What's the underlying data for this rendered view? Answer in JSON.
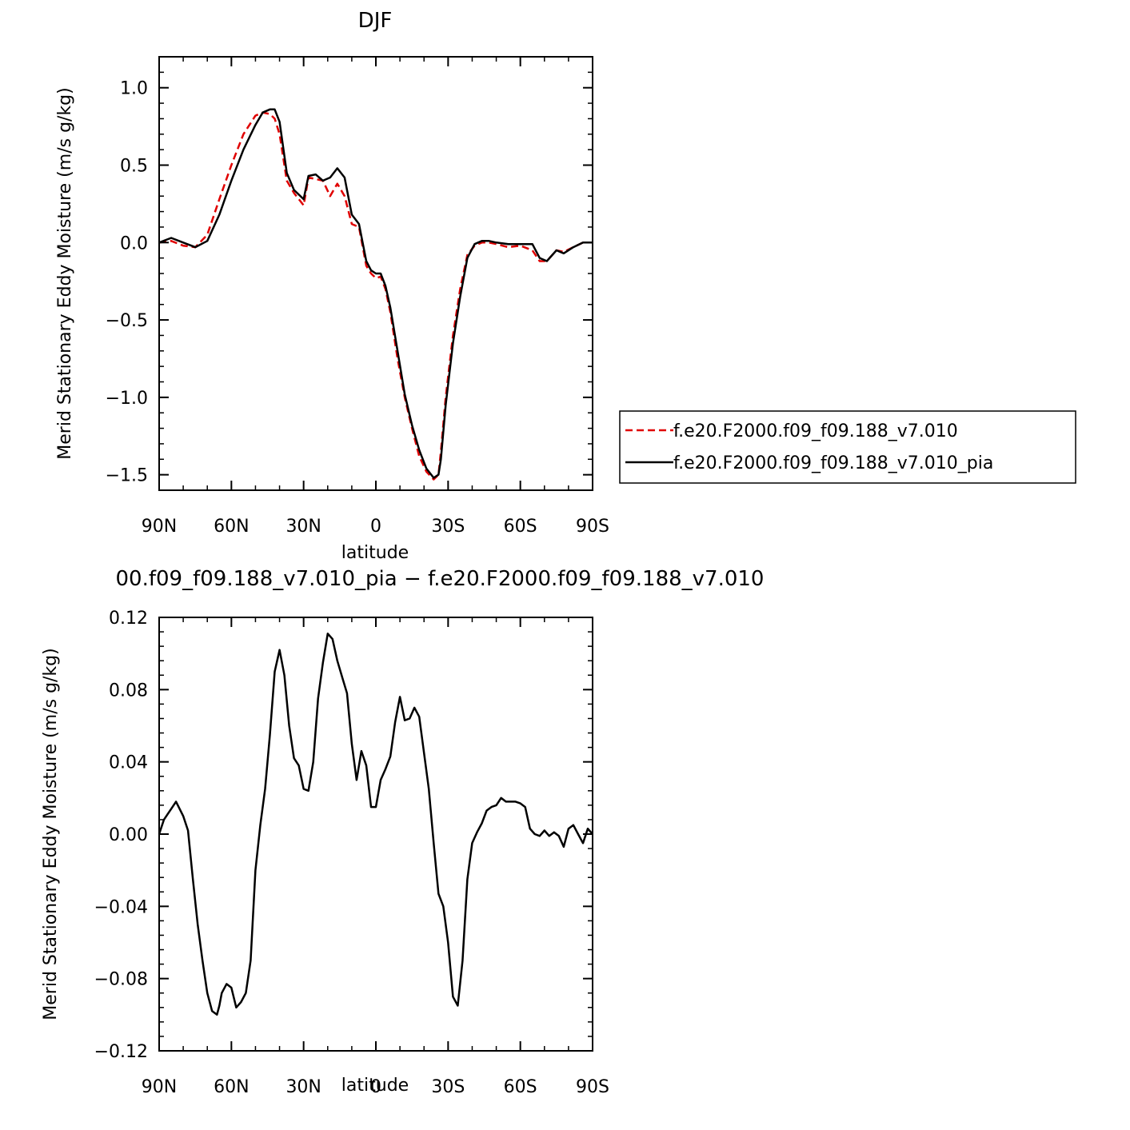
{
  "chart_data": [
    {
      "type": "line",
      "title": "DJF",
      "xlabel": "latitude",
      "ylabel": "Merid Stationary  Eddy Moisture (m/s g/kg)",
      "xlim": [
        90,
        -90
      ],
      "ylim": [
        -1.6,
        1.2
      ],
      "x_ticks": [
        {
          "value": 90,
          "label": "90N"
        },
        {
          "value": 60,
          "label": "60N"
        },
        {
          "value": 30,
          "label": "30N"
        },
        {
          "value": 0,
          "label": "0"
        },
        {
          "value": -30,
          "label": "30S"
        },
        {
          "value": -60,
          "label": "60S"
        },
        {
          "value": -90,
          "label": "90S"
        }
      ],
      "y_ticks": [
        {
          "value": 1.0,
          "label": "1.0"
        },
        {
          "value": 0.5,
          "label": "0.5"
        },
        {
          "value": 0.0,
          "label": "0.0"
        },
        {
          "value": -0.5,
          "label": "−0.5"
        },
        {
          "value": -1.0,
          "label": "−1.0"
        },
        {
          "value": -1.5,
          "label": "−1.5"
        }
      ],
      "legend": {
        "placement": "right",
        "entries": [
          {
            "label": "f.e20.F2000.f09_f09.188_v7.010",
            "color": "#e00000",
            "dash": "dashed"
          },
          {
            "label": "f.e20.F2000.f09_f09.188_v7.010_pia",
            "color": "#000000",
            "dash": "solid"
          }
        ]
      },
      "series": [
        {
          "name": "f.e20.F2000.f09_f09.188_v7.010",
          "color": "#e00000",
          "dash": "dashed",
          "x": [
            90,
            85,
            80,
            75,
            70,
            65,
            60,
            55,
            50,
            47,
            44,
            42,
            40,
            37,
            34,
            30,
            28,
            25,
            22,
            19,
            16,
            13,
            10,
            7,
            4,
            2,
            0,
            -2,
            -4,
            -6,
            -9,
            -12,
            -15,
            -18,
            -21,
            -24,
            -26,
            -27,
            -29,
            -32,
            -35,
            -38,
            -41,
            -44,
            -47,
            -50,
            -55,
            -60,
            -65,
            -68,
            -71,
            -75,
            -78,
            -82,
            -86,
            -90
          ],
          "y": [
            0.0,
            0.01,
            -0.02,
            -0.03,
            0.05,
            0.28,
            0.5,
            0.7,
            0.82,
            0.84,
            0.83,
            0.8,
            0.7,
            0.4,
            0.32,
            0.24,
            0.42,
            0.41,
            0.4,
            0.3,
            0.38,
            0.3,
            0.12,
            0.1,
            -0.15,
            -0.2,
            -0.23,
            -0.22,
            -0.3,
            -0.45,
            -0.75,
            -1.0,
            -1.2,
            -1.38,
            -1.48,
            -1.53,
            -1.5,
            -1.35,
            -1.0,
            -0.6,
            -0.3,
            -0.08,
            -0.02,
            0.0,
            0.0,
            -0.01,
            -0.03,
            -0.02,
            -0.05,
            -0.12,
            -0.12,
            -0.05,
            -0.06,
            -0.03,
            0.0,
            0.0
          ]
        },
        {
          "name": "f.e20.F2000.f09_f09.188_v7.010_pia",
          "color": "#000000",
          "dash": "solid",
          "x": [
            90,
            85,
            80,
            75,
            70,
            65,
            60,
            55,
            50,
            47,
            44,
            42,
            40,
            37,
            34,
            30,
            28,
            25,
            22,
            19,
            16,
            13,
            10,
            7,
            4,
            2,
            0,
            -2,
            -4,
            -6,
            -9,
            -12,
            -15,
            -18,
            -21,
            -24,
            -26,
            -27,
            -29,
            -32,
            -35,
            -38,
            -41,
            -44,
            -47,
            -50,
            -55,
            -60,
            -65,
            -68,
            -71,
            -75,
            -78,
            -82,
            -86,
            -90
          ],
          "y": [
            0.0,
            0.03,
            0.0,
            -0.03,
            0.01,
            0.18,
            0.4,
            0.6,
            0.76,
            0.84,
            0.86,
            0.86,
            0.78,
            0.45,
            0.34,
            0.28,
            0.43,
            0.44,
            0.4,
            0.42,
            0.48,
            0.42,
            0.18,
            0.12,
            -0.12,
            -0.18,
            -0.2,
            -0.2,
            -0.28,
            -0.42,
            -0.7,
            -0.98,
            -1.18,
            -1.34,
            -1.46,
            -1.52,
            -1.5,
            -1.4,
            -1.05,
            -0.65,
            -0.35,
            -0.1,
            -0.01,
            0.01,
            0.01,
            0.0,
            -0.01,
            -0.01,
            -0.01,
            -0.1,
            -0.12,
            -0.05,
            -0.07,
            -0.03,
            0.0,
            0.0
          ]
        }
      ]
    },
    {
      "type": "line",
      "title": "00.f09_f09.188_v7.010_pia − f.e20.F2000.f09_f09.188_v7.010",
      "xlabel": "latitude",
      "ylabel": "Merid Stationary  Eddy Moisture (m/s g/kg)",
      "xlim": [
        90,
        -90
      ],
      "ylim": [
        -0.12,
        0.12
      ],
      "x_ticks": [
        {
          "value": 90,
          "label": "90N"
        },
        {
          "value": 60,
          "label": "60N"
        },
        {
          "value": 30,
          "label": "30N"
        },
        {
          "value": 0,
          "label": "0"
        },
        {
          "value": -30,
          "label": "30S"
        },
        {
          "value": -60,
          "label": "60S"
        },
        {
          "value": -90,
          "label": "90S"
        }
      ],
      "y_ticks": [
        {
          "value": 0.12,
          "label": "0.12"
        },
        {
          "value": 0.08,
          "label": "0.08"
        },
        {
          "value": 0.04,
          "label": "0.04"
        },
        {
          "value": 0.0,
          "label": "0.00"
        },
        {
          "value": -0.04,
          "label": "−0.04"
        },
        {
          "value": -0.08,
          "label": "−0.08"
        },
        {
          "value": -0.12,
          "label": "−0.12"
        }
      ],
      "series": [
        {
          "color": "#000000",
          "dash": "solid",
          "x": [
            90,
            88,
            85,
            83,
            80,
            78,
            76,
            74,
            72,
            70,
            68,
            66,
            65,
            64,
            62,
            60,
            58,
            56,
            54,
            52,
            50,
            48,
            46,
            44,
            42,
            40,
            38,
            36,
            34,
            32,
            30,
            28,
            26,
            24,
            22,
            20,
            18,
            16,
            14,
            12,
            10,
            8,
            6,
            4,
            2,
            0,
            -2,
            -4,
            -6,
            -8,
            -10,
            -12,
            -14,
            -16,
            -18,
            -20,
            -22,
            -24,
            -26,
            -28,
            -30,
            -32,
            -34,
            -36,
            -38,
            -40,
            -42,
            -44,
            -46,
            -48,
            -50,
            -52,
            -54,
            -56,
            -58,
            -60,
            -62,
            -64,
            -66,
            -68,
            -70,
            -72,
            -74,
            -76,
            -78,
            -80,
            -82,
            -84,
            -86,
            -88,
            -90
          ],
          "y": [
            0.0,
            0.008,
            0.014,
            0.018,
            0.01,
            0.002,
            -0.025,
            -0.05,
            -0.07,
            -0.088,
            -0.098,
            -0.1,
            -0.095,
            -0.088,
            -0.083,
            -0.085,
            -0.096,
            -0.093,
            -0.088,
            -0.07,
            -0.02,
            0.005,
            0.025,
            0.055,
            0.09,
            0.102,
            0.088,
            0.06,
            0.042,
            0.038,
            0.025,
            0.024,
            0.04,
            0.075,
            0.095,
            0.111,
            0.108,
            0.096,
            0.087,
            0.078,
            0.05,
            0.03,
            0.046,
            0.038,
            0.015,
            0.015,
            0.03,
            0.036,
            0.043,
            0.062,
            0.076,
            0.063,
            0.064,
            0.07,
            0.065,
            0.045,
            0.025,
            -0.005,
            -0.033,
            -0.04,
            -0.06,
            -0.09,
            -0.095,
            -0.07,
            -0.025,
            -0.005,
            0.001,
            0.006,
            0.013,
            0.015,
            0.016,
            0.02,
            0.018,
            0.018,
            0.018,
            0.017,
            0.015,
            0.003,
            0.0,
            -0.001,
            0.002,
            -0.001,
            0.001,
            -0.001,
            -0.007,
            0.003,
            0.005,
            0.0,
            -0.005,
            0.003,
            0.0
          ]
        }
      ]
    }
  ]
}
